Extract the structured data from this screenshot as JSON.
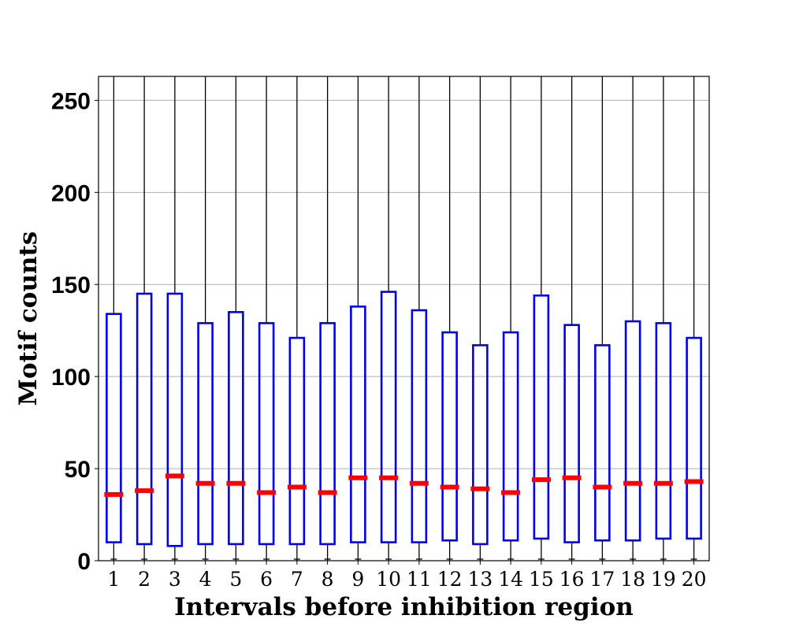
{
  "chart_data": {
    "type": "box",
    "title": "",
    "xlabel": "Intervals before inhibition region",
    "ylabel": "Motif counts",
    "categories": [
      "1",
      "2",
      "3",
      "4",
      "5",
      "6",
      "7",
      "8",
      "9",
      "10",
      "11",
      "12",
      "13",
      "14",
      "15",
      "16",
      "17",
      "18",
      "19",
      "20"
    ],
    "yticks": [
      0,
      50,
      100,
      150,
      200,
      250
    ],
    "ylim": [
      0,
      263
    ],
    "grid": "horizontal",
    "colors": {
      "box": "#0000ee",
      "median": "#ff0000",
      "whisker": "#000000",
      "grid": "#b0b0b0"
    },
    "series": [
      {
        "q1": 10,
        "median": 36,
        "q3": 134,
        "min": 0,
        "max": 263
      },
      {
        "q1": 9,
        "median": 38,
        "q3": 145,
        "min": 0,
        "max": 263
      },
      {
        "q1": 8,
        "median": 46,
        "q3": 145,
        "min": 0,
        "max": 263
      },
      {
        "q1": 9,
        "median": 42,
        "q3": 129,
        "min": 0,
        "max": 263
      },
      {
        "q1": 9,
        "median": 42,
        "q3": 135,
        "min": 0,
        "max": 263
      },
      {
        "q1": 9,
        "median": 37,
        "q3": 129,
        "min": 0,
        "max": 263
      },
      {
        "q1": 9,
        "median": 40,
        "q3": 121,
        "min": 0,
        "max": 263
      },
      {
        "q1": 9,
        "median": 37,
        "q3": 129,
        "min": 0,
        "max": 263
      },
      {
        "q1": 10,
        "median": 45,
        "q3": 138,
        "min": 0,
        "max": 263
      },
      {
        "q1": 10,
        "median": 45,
        "q3": 146,
        "min": 0,
        "max": 263
      },
      {
        "q1": 10,
        "median": 42,
        "q3": 136,
        "min": 0,
        "max": 263
      },
      {
        "q1": 11,
        "median": 40,
        "q3": 124,
        "min": 0,
        "max": 263
      },
      {
        "q1": 9,
        "median": 39,
        "q3": 117,
        "min": 0,
        "max": 263
      },
      {
        "q1": 11,
        "median": 37,
        "q3": 124,
        "min": 0,
        "max": 263
      },
      {
        "q1": 12,
        "median": 44,
        "q3": 144,
        "min": 0,
        "max": 263
      },
      {
        "q1": 10,
        "median": 45,
        "q3": 128,
        "min": 0,
        "max": 263
      },
      {
        "q1": 11,
        "median": 40,
        "q3": 117,
        "min": 0,
        "max": 263
      },
      {
        "q1": 11,
        "median": 42,
        "q3": 130,
        "min": 0,
        "max": 263
      },
      {
        "q1": 12,
        "median": 42,
        "q3": 129,
        "min": 0,
        "max": 263
      },
      {
        "q1": 12,
        "median": 43,
        "q3": 121,
        "min": 0,
        "max": 263
      }
    ]
  }
}
